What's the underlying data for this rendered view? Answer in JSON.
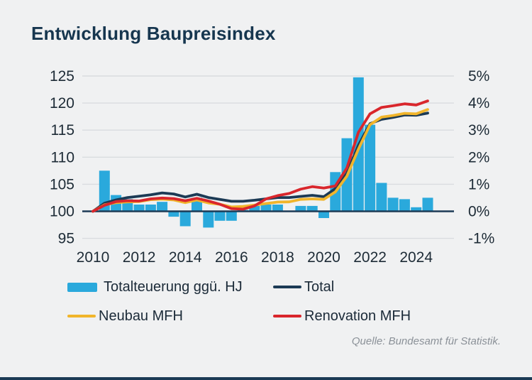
{
  "title": "Entwicklung Baupreisindex",
  "source": "Quelle: Bundesamt für Statistik.",
  "colors": {
    "background": "#f0f1f2",
    "bar": "#2aa9dc",
    "total_line": "#1c3a55",
    "neubau_line": "#f1b52b",
    "renovation_line": "#d9262c",
    "grid": "#d9dcdf",
    "zero_axis": "#1d3b56",
    "axis_text": "#1d2b36",
    "title_text": "#16364f",
    "source_text": "#8b9198",
    "bottom_bar": "#1c3a55"
  },
  "legend": {
    "items": [
      {
        "label": "Totalteuerung ggü. HJ",
        "type": "bar",
        "color": "#2aa9dc"
      },
      {
        "label": "Total",
        "type": "line",
        "color": "#1c3a55"
      },
      {
        "label": "Neubau MFH",
        "type": "line",
        "color": "#f1b52b"
      },
      {
        "label": "Renovation MFH",
        "type": "line",
        "color": "#d9262c"
      }
    ]
  },
  "chart_data": {
    "type": "bar+line",
    "title": "Entwicklung Baupreisindex",
    "grid": true,
    "legend_position": "bottom",
    "left_axis_ticks": [
      125,
      120,
      115,
      110,
      105,
      100,
      95
    ],
    "right_axis_tick_labels": [
      "5%",
      "4%",
      "3%",
      "2%",
      "1%",
      "0%",
      "-1%"
    ],
    "right_axis_tick_pcts": [
      5,
      4,
      3,
      2,
      1,
      0,
      -1
    ],
    "x_tick_labels": [
      "2010",
      "2012",
      "2014",
      "2016",
      "2018",
      "2020",
      "2022",
      "2024"
    ],
    "x_tick_years": [
      2010,
      2012,
      2014,
      2016,
      2018,
      2020,
      2022,
      2024
    ],
    "left_axis_range": [
      95,
      125
    ],
    "right_axis_range_pct": [
      -1,
      5
    ],
    "index_base": 100,
    "index_points_per_pct": 5,
    "bars": {
      "name": "Totalteuerung ggü. HJ",
      "unit": "% ggü. Halbjahr",
      "color": "#2aa9dc",
      "x": [
        2010.5,
        2011,
        2011.5,
        2012,
        2012.5,
        2013,
        2013.5,
        2014,
        2014.5,
        2015,
        2015.5,
        2016,
        2016.5,
        2017,
        2017.5,
        2018,
        2018.5,
        2019,
        2019.5,
        2020,
        2020.5,
        2021,
        2021.5,
        2022,
        2022.5,
        2023,
        2023.5,
        2024,
        2024.5
      ],
      "values": [
        1.5,
        0.6,
        0.45,
        0.25,
        0.25,
        0.35,
        -0.2,
        -0.55,
        0.5,
        -0.6,
        -0.35,
        -0.35,
        0.05,
        0.2,
        0.25,
        0.25,
        0,
        0.2,
        0.2,
        -0.25,
        1.45,
        2.7,
        4.95,
        3.2,
        1.05,
        0.5,
        0.45,
        0.15,
        0.5
      ]
    },
    "series_x": [
      2010,
      2010.5,
      2011,
      2011.5,
      2012,
      2012.5,
      2013,
      2013.5,
      2014,
      2014.5,
      2015,
      2015.5,
      2016,
      2016.5,
      2017,
      2017.5,
      2018,
      2018.5,
      2019,
      2019.5,
      2020,
      2020.5,
      2021,
      2021.5,
      2022,
      2022.5,
      2023,
      2023.5,
      2024,
      2024.5
    ],
    "series": [
      {
        "name": "Total",
        "color": "#1c3a55",
        "values": [
          100,
          101.5,
          102.1,
          102.55,
          102.8,
          103.05,
          103.4,
          103.2,
          102.65,
          103.15,
          102.55,
          102.2,
          101.85,
          101.85,
          102.05,
          102.3,
          102.55,
          102.55,
          102.75,
          102.95,
          102.7,
          104.2,
          107.0,
          112.2,
          116.2,
          117.0,
          117.35,
          117.8,
          117.75,
          118.15
        ]
      },
      {
        "name": "Neubau MFH",
        "color": "#f1b52b",
        "values": [
          100,
          101.2,
          101.6,
          101.75,
          101.8,
          102.15,
          102.25,
          102.1,
          101.6,
          102.1,
          101.55,
          101.3,
          100.8,
          100.9,
          101.15,
          101.45,
          101.7,
          101.75,
          102.2,
          102.3,
          102.2,
          103.6,
          106.5,
          111.5,
          116.0,
          117.4,
          117.7,
          118.1,
          118.0,
          118.8
        ]
      },
      {
        "name": "Renovation MFH",
        "color": "#d9262c",
        "values": [
          100,
          101.1,
          101.8,
          101.95,
          101.9,
          102.3,
          102.45,
          102.35,
          101.95,
          102.4,
          101.9,
          101.3,
          100.5,
          100.4,
          101.0,
          102.3,
          102.9,
          103.3,
          104.1,
          104.55,
          104.3,
          104.7,
          108.0,
          114.6,
          118.0,
          119.2,
          119.5,
          119.85,
          119.65,
          120.4
        ]
      }
    ]
  }
}
